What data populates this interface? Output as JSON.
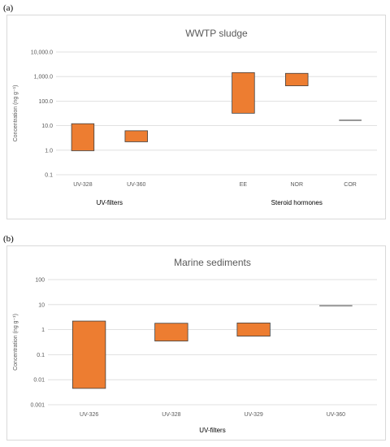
{
  "panels": [
    {
      "label": "(a)"
    },
    {
      "label": "(b)"
    }
  ],
  "chart_data": [
    {
      "type": "bar",
      "subtype": "floating-range",
      "title": "WWTP sludge",
      "ylabel": "Concentration (ng g⁻¹)",
      "yscale": "log",
      "ylim": [
        0.1,
        10000
      ],
      "yticks": [
        {
          "value": 0.1,
          "label": "0.1"
        },
        {
          "value": 1,
          "label": "1.0"
        },
        {
          "value": 10,
          "label": "10.0"
        },
        {
          "value": 100,
          "label": "100.0"
        },
        {
          "value": 1000,
          "label": "1,000.0"
        },
        {
          "value": 10000,
          "label": "10,000.0"
        }
      ],
      "grid": true,
      "bar_color": "#ED7D31",
      "categories": [
        "UV-328",
        "UV-360",
        "",
        "EE",
        "NOR",
        "COR"
      ],
      "ranges": [
        {
          "category": "UV-328",
          "min": 0.95,
          "max": 12
        },
        {
          "category": "UV-360",
          "min": 2.2,
          "max": 6.2
        },
        {
          "category": "",
          "min": null,
          "max": null
        },
        {
          "category": "EE",
          "min": 32,
          "max": 1450
        },
        {
          "category": "NOR",
          "min": 420,
          "max": 1350
        },
        {
          "category": "COR",
          "min": 16.5,
          "max": 16.5
        }
      ],
      "groups": [
        {
          "label": "UV-filters",
          "categories": [
            "UV-328",
            "UV-360"
          ]
        },
        {
          "label": "Steroid hormones",
          "categories": [
            "EE",
            "NOR",
            "COR"
          ]
        }
      ]
    },
    {
      "type": "bar",
      "subtype": "floating-range",
      "title": "Marine sediments",
      "ylabel": "Concentration (ng g⁻¹)",
      "xlabel": "UV-filters",
      "yscale": "log",
      "ylim": [
        0.001,
        100
      ],
      "yticks": [
        {
          "value": 0.001,
          "label": "0.001"
        },
        {
          "value": 0.01,
          "label": "0.01"
        },
        {
          "value": 0.1,
          "label": "0.1"
        },
        {
          "value": 1,
          "label": "1"
        },
        {
          "value": 10,
          "label": "10"
        },
        {
          "value": 100,
          "label": "100"
        }
      ],
      "grid": true,
      "bar_color": "#ED7D31",
      "categories": [
        "UV-326",
        "UV-328",
        "UV-329",
        "UV-360"
      ],
      "ranges": [
        {
          "category": "UV-326",
          "min": 0.0045,
          "max": 2.2
        },
        {
          "category": "UV-328",
          "min": 0.35,
          "max": 1.8
        },
        {
          "category": "UV-329",
          "min": 0.55,
          "max": 1.85
        },
        {
          "category": "UV-360",
          "min": 9,
          "max": 9
        }
      ]
    }
  ]
}
